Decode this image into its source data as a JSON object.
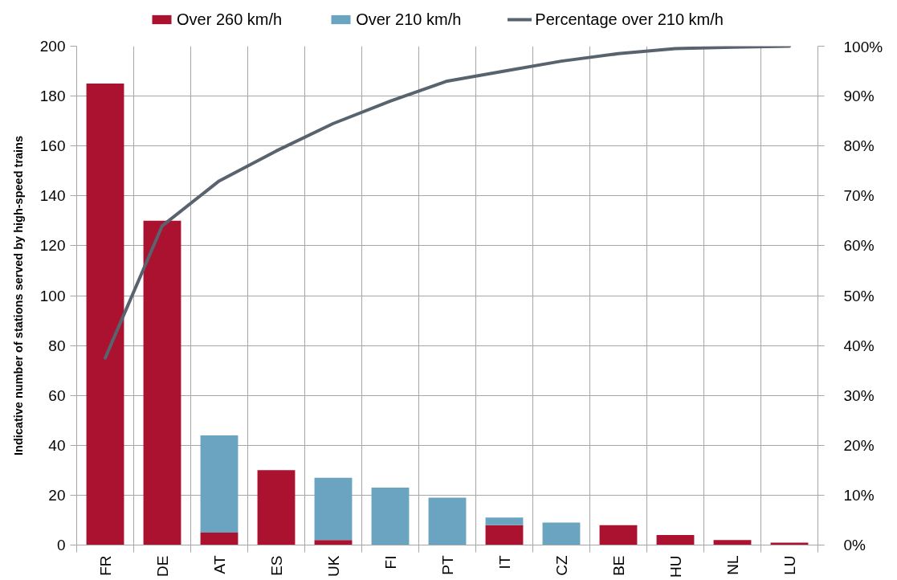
{
  "chart_data": {
    "type": "bar",
    "stacked": true,
    "categories": [
      "FR",
      "DE",
      "AT",
      "ES",
      "UK",
      "FI",
      "PT",
      "IT",
      "CZ",
      "BE",
      "HU",
      "NL",
      "LU"
    ],
    "ylabel": "Indicative number of stations served by high-speed trains",
    "ylim": [
      0,
      200
    ],
    "yticks": [
      0,
      20,
      40,
      60,
      80,
      100,
      120,
      140,
      160,
      180,
      200
    ],
    "y2lim": [
      0,
      100
    ],
    "y2ticks": [
      {
        "value": 0,
        "label": "0%"
      },
      {
        "value": 10,
        "label": "10%"
      },
      {
        "value": 20,
        "label": "20%"
      },
      {
        "value": 30,
        "label": "30%"
      },
      {
        "value": 40,
        "label": "40%"
      },
      {
        "value": 50,
        "label": "50%"
      },
      {
        "value": 60,
        "label": "60%"
      },
      {
        "value": 70,
        "label": "70%"
      },
      {
        "value": 80,
        "label": "80%"
      },
      {
        "value": 90,
        "label": "90%"
      },
      {
        "value": 100,
        "label": "100%"
      }
    ],
    "grid": true,
    "legend": "top",
    "line_style": "solid",
    "series": [
      {
        "name": "Over 260 km/h",
        "color": "#ab1230",
        "values": [
          185,
          130,
          5,
          30,
          2,
          0,
          0,
          8,
          0,
          8,
          4,
          2,
          1
        ]
      },
      {
        "name": "Over 210 km/h",
        "color": "#6aa4c0",
        "values": [
          0,
          0,
          39,
          0,
          25,
          23,
          19,
          3,
          9,
          0,
          0,
          0,
          0
        ]
      },
      {
        "name": "Percentage over 210 km/h",
        "type": "line",
        "axis": "y2",
        "color": "#58636e",
        "values": [
          37.5,
          64,
          73,
          79,
          84.5,
          89,
          93,
          95,
          97,
          98.5,
          99.5,
          99.8,
          100
        ]
      }
    ]
  }
}
